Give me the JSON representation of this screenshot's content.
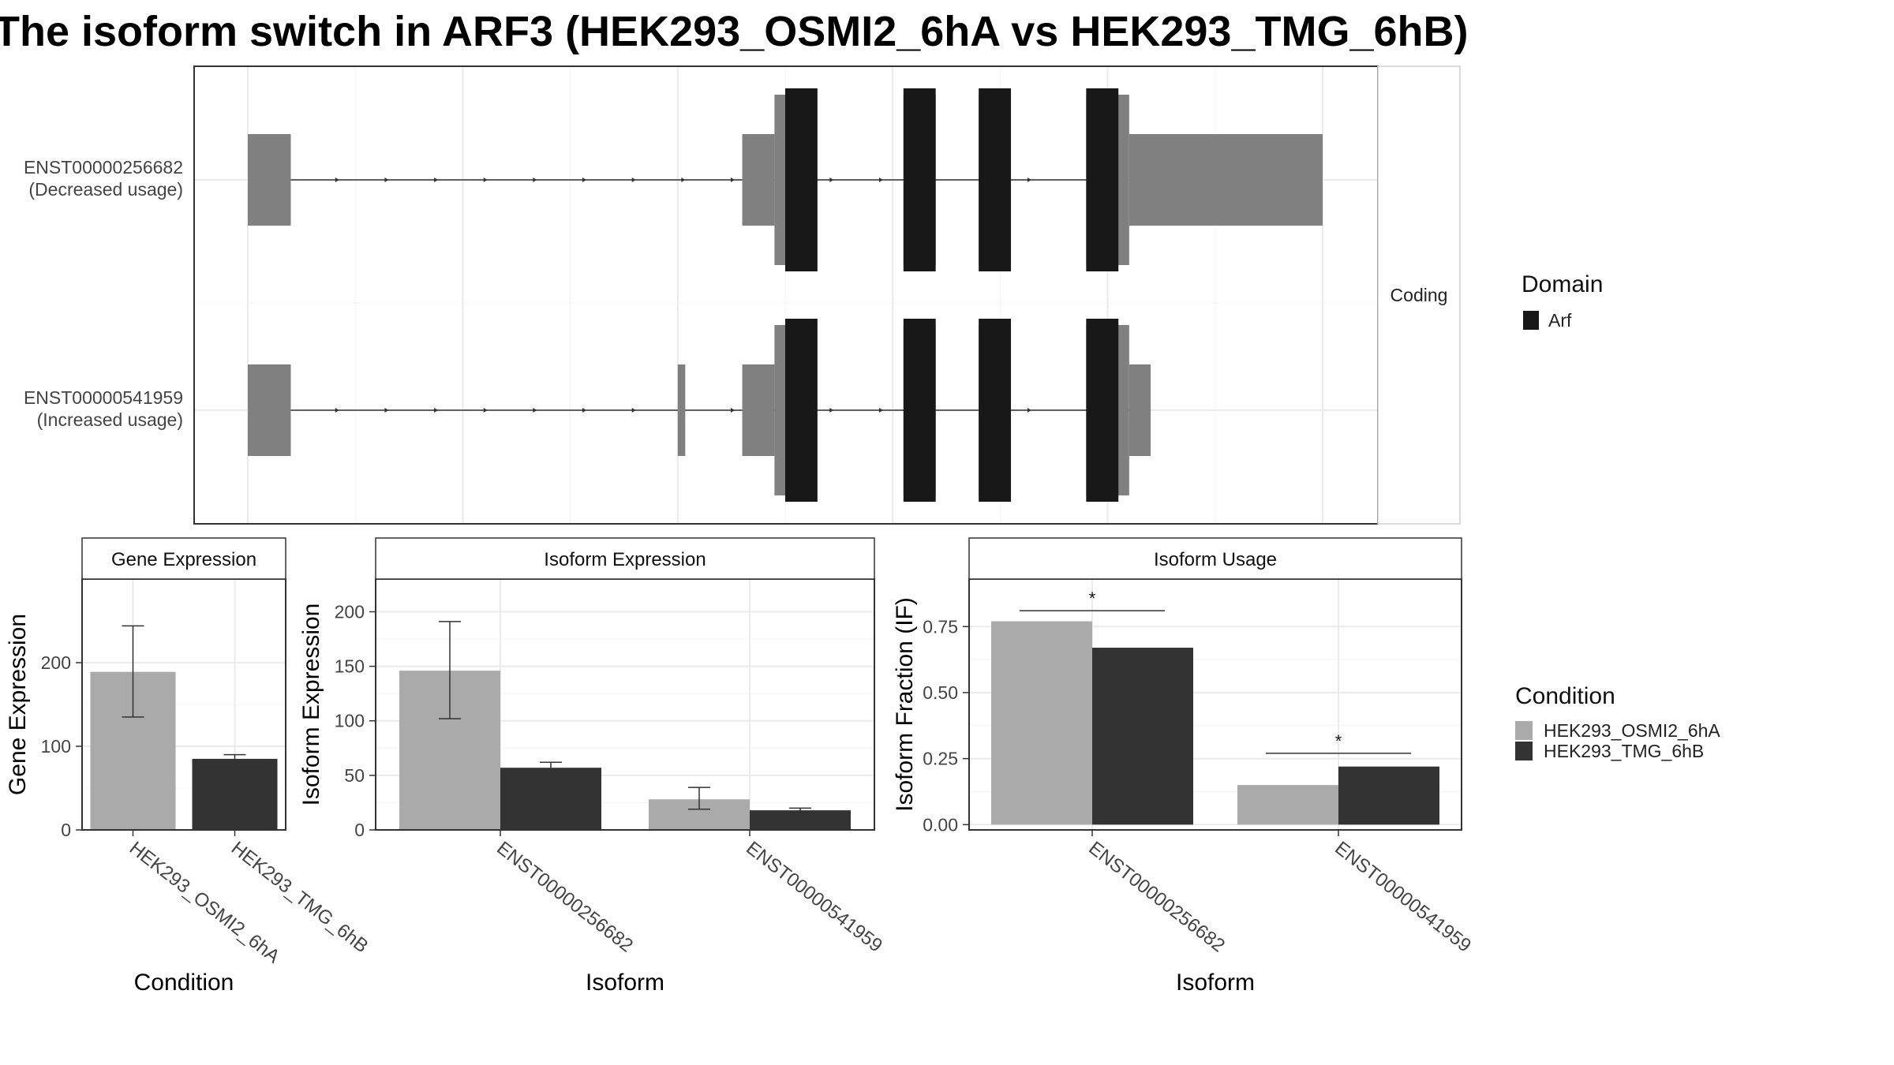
{
  "title": "The isoform switch in ARF3 (HEK293_OSMI2_6hA vs HEK293_TMG_6hB)",
  "colors": {
    "cond1": "#aaaaaa",
    "cond2": "#333333",
    "domain": "#181818",
    "utr": "#808080",
    "panel_border": "#333333",
    "grid": "#ebebeb",
    "strip_bg": "#ffffff",
    "text": "#222222"
  },
  "transcript_panel": {
    "strip_label": "Coding",
    "legend_title": "Domain",
    "legend_items": [
      "Arf"
    ],
    "transcripts": [
      {
        "id": "ENST00000256682",
        "usage": "(Decreased usage)",
        "span": [
          0,
          1.0
        ],
        "utr_blocks": [
          [
            0.0,
            0.04
          ],
          [
            0.46,
            0.49
          ],
          [
            0.82,
            1.0
          ]
        ],
        "cds_blocks": [
          [
            0.49,
            0.52
          ],
          [
            0.61,
            0.64
          ],
          [
            0.68,
            0.71
          ],
          [
            0.78,
            0.82
          ]
        ],
        "domain_blocks": [
          [
            0.5,
            0.53
          ],
          [
            0.61,
            0.64
          ],
          [
            0.68,
            0.71
          ],
          [
            0.78,
            0.81
          ]
        ]
      },
      {
        "id": "ENST00000541959",
        "usage": "(Increased usage)",
        "span": [
          0,
          0.84
        ],
        "utr_blocks": [
          [
            0.0,
            0.04
          ],
          [
            0.4,
            0.407
          ],
          [
            0.46,
            0.49
          ],
          [
            0.82,
            0.84
          ]
        ],
        "cds_blocks": [
          [
            0.49,
            0.52
          ],
          [
            0.61,
            0.64
          ],
          [
            0.68,
            0.71
          ],
          [
            0.78,
            0.82
          ]
        ],
        "domain_blocks": [
          [
            0.5,
            0.53
          ],
          [
            0.61,
            0.64
          ],
          [
            0.68,
            0.71
          ],
          [
            0.78,
            0.81
          ]
        ]
      }
    ]
  },
  "condition_legend": {
    "title": "Condition",
    "items": [
      "HEK293_OSMI2_6hA",
      "HEK293_TMG_6hB"
    ]
  },
  "chart_data": [
    {
      "type": "bar",
      "title": "Gene Expression",
      "xlabel": "Condition",
      "ylabel": "Gene Expression",
      "categories": [
        "HEK293_OSMI2_6hA",
        "HEK293_TMG_6hB"
      ],
      "values": [
        189,
        85
      ],
      "error": [
        [
          135,
          244
        ],
        [
          81,
          90
        ]
      ],
      "ylim": [
        0,
        300
      ],
      "yticks": [
        0,
        100,
        200
      ],
      "grid": true
    },
    {
      "type": "bar",
      "title": "Isoform Expression",
      "xlabel": "Isoform",
      "ylabel": "Isoform Expression",
      "categories": [
        "ENST00000256682",
        "ENST00000541959"
      ],
      "series": [
        {
          "name": "HEK293_OSMI2_6hA",
          "values": [
            146,
            28
          ],
          "error": [
            [
              102,
              191
            ],
            [
              19,
              39
            ]
          ]
        },
        {
          "name": "HEK293_TMG_6hB",
          "values": [
            57,
            18
          ],
          "error": [
            [
              53,
              62
            ],
            [
              17,
              20
            ]
          ]
        }
      ],
      "ylim": [
        0,
        230
      ],
      "yticks": [
        0,
        50,
        100,
        150,
        200
      ],
      "grid": true
    },
    {
      "type": "bar",
      "title": "Isoform Usage",
      "xlabel": "Isoform",
      "ylabel": "Isoform Fraction (IF)",
      "categories": [
        "ENST00000256682",
        "ENST00000541959"
      ],
      "series": [
        {
          "name": "HEK293_OSMI2_6hA",
          "values": [
            0.77,
            0.15
          ]
        },
        {
          "name": "HEK293_TMG_6hB",
          "values": [
            0.67,
            0.22
          ]
        }
      ],
      "significance": [
        "*",
        "*"
      ],
      "sig_levels": [
        0.81,
        0.27
      ],
      "ylim": [
        -0.02,
        0.93
      ],
      "yticks": [
        0.0,
        0.25,
        0.5,
        0.75
      ],
      "ytick_labels": [
        "0.00",
        "0.25",
        "0.50",
        "0.75"
      ],
      "grid": true
    }
  ]
}
